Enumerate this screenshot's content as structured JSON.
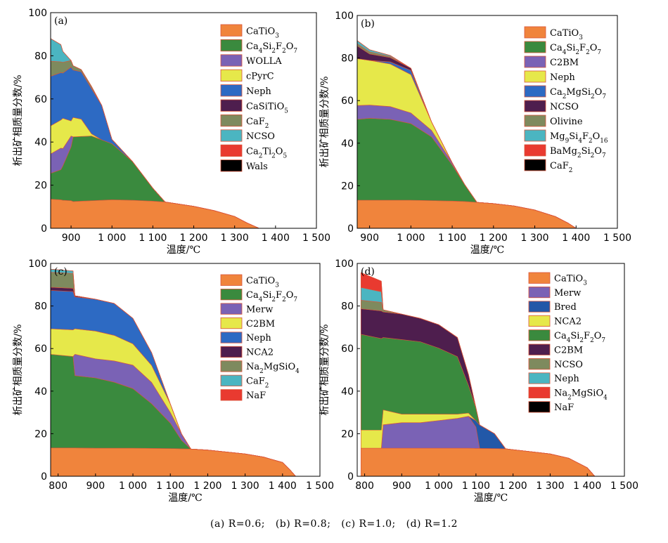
{
  "common": {
    "xlabel": "温度/℃",
    "ylabel": "析出矿相质量分数/%",
    "xtick_labels": {
      "800": "800",
      "900": "900",
      "1000": "1 000",
      "1100": "1 100",
      "1200": "1 200",
      "1300": "1 300",
      "1400": "1 400",
      "1500": "1 500"
    },
    "ytick_labels": [
      "0",
      "20",
      "40",
      "60",
      "80",
      "100"
    ]
  },
  "caption": {
    "a": "(a) R=0.6;",
    "b": "(b) R=0.8;",
    "c": "(c) R=1.0;",
    "d": "(d) R=1.2"
  },
  "chart_data": [
    {
      "type": "area",
      "panel": "(a)",
      "xlim": [
        850,
        1500
      ],
      "ylim": [
        0,
        100
      ],
      "x": [
        850,
        875,
        880,
        900,
        905,
        925,
        950,
        975,
        1000,
        1050,
        1100,
        1130,
        1200,
        1250,
        1300,
        1330,
        1360
      ],
      "series": [
        {
          "name": "CaTiO3",
          "label": [
            "CaTiO",
            "3"
          ],
          "color": "#F0843C",
          "values": [
            13.5,
            13.2,
            13,
            12.8,
            12.4,
            12.6,
            12.8,
            13,
            13.2,
            13,
            12.6,
            12.2,
            10.2,
            8.2,
            5.5,
            2.5,
            0
          ]
        },
        {
          "name": "Ca4Si2F2O7",
          "label": [
            "Ca",
            "4",
            "Si",
            "2",
            "F",
            "2",
            "O",
            "7"
          ],
          "color": "#3A8A3E",
          "values": [
            12,
            14,
            16,
            25,
            30,
            30,
            30,
            28,
            26,
            18,
            6,
            0,
            0,
            0,
            0,
            0,
            0
          ]
        },
        {
          "name": "WOLLA",
          "label": [
            "WOLLA"
          ],
          "color": "#7A62B5",
          "values": [
            9,
            10,
            8,
            5,
            0,
            0,
            0,
            0,
            0,
            0,
            0,
            0,
            0,
            0,
            0,
            0,
            0
          ]
        },
        {
          "name": "cPyrC",
          "label": [
            "cPyrC"
          ],
          "color": "#E6E84A",
          "values": [
            13,
            13,
            14,
            7,
            9,
            8,
            1,
            0,
            0,
            0,
            0,
            0,
            0,
            0,
            0,
            0,
            0
          ]
        },
        {
          "name": "Neph",
          "label": [
            "Neph"
          ],
          "color": "#2D6AC3",
          "values": [
            23,
            22,
            21,
            25,
            22,
            22,
            21,
            16,
            2,
            0,
            0,
            0,
            0,
            0,
            0,
            0,
            0
          ]
        },
        {
          "name": "CaSiTiO5",
          "label": [
            "CaSiTiO",
            "5"
          ],
          "color": "#4E1E4E",
          "values": [
            0,
            0,
            0,
            0,
            0,
            0,
            0,
            0,
            0,
            0,
            0,
            0,
            0,
            0,
            0,
            0,
            0
          ]
        },
        {
          "name": "CaF2",
          "label": [
            "CaF",
            "2"
          ],
          "color": "#7E8A5E",
          "values": [
            7,
            5,
            5,
            3,
            2,
            1,
            1,
            0,
            0,
            0,
            0,
            0,
            0,
            0,
            0,
            0,
            0
          ]
        },
        {
          "name": "NCSO",
          "label": [
            "NCSO"
          ],
          "color": "#4BB5C1",
          "values": [
            10.5,
            8,
            5,
            0,
            0,
            0,
            0,
            0,
            0,
            0,
            0,
            0,
            0,
            0,
            0,
            0,
            0
          ]
        },
        {
          "name": "Ca2Ti2O5",
          "label": [
            "Ca",
            "2",
            "Ti",
            "2",
            "O",
            "5"
          ],
          "color": "#E93A30",
          "values": [
            0,
            0,
            0,
            0,
            0,
            0,
            0,
            0,
            0,
            0,
            0,
            0,
            0,
            0,
            0,
            0,
            0
          ]
        },
        {
          "name": "Wals",
          "label": [
            "Wals"
          ],
          "color": "#000000",
          "values": [
            0,
            0,
            0,
            0,
            0,
            0,
            0,
            0,
            0,
            0,
            0,
            0,
            0,
            0,
            0,
            0,
            0
          ]
        }
      ]
    },
    {
      "type": "area",
      "panel": "(b)",
      "xlim": [
        870,
        1500
      ],
      "ylim": [
        0,
        100
      ],
      "x": [
        870,
        900,
        950,
        1000,
        1050,
        1100,
        1130,
        1160,
        1200,
        1250,
        1300,
        1350,
        1380,
        1400
      ],
      "series": [
        {
          "name": "CaTiO3",
          "label": [
            "CaTiO",
            "3"
          ],
          "color": "#F0843C",
          "values": [
            13.2,
            13.2,
            13.2,
            13.2,
            13,
            12.8,
            12.6,
            12.2,
            11.6,
            10.5,
            8.6,
            5.5,
            2.5,
            0
          ]
        },
        {
          "name": "Ca4Si2F2O7",
          "label": [
            "Ca",
            "4",
            "Si",
            "2",
            "F",
            "2",
            "O",
            "7"
          ],
          "color": "#3A8A3E",
          "values": [
            38,
            38.5,
            38,
            36,
            30,
            17,
            8,
            0,
            0,
            0,
            0,
            0,
            0,
            0
          ]
        },
        {
          "name": "C2BM",
          "label": [
            "C2BM"
          ],
          "color": "#7A62B5",
          "values": [
            6.5,
            6.2,
            6,
            5,
            3,
            1,
            0,
            0,
            0,
            0,
            0,
            0,
            0,
            0
          ]
        },
        {
          "name": "Neph",
          "label": [
            "Neph"
          ],
          "color": "#E6E84A",
          "values": [
            22,
            21,
            20,
            18,
            4,
            0,
            0,
            0,
            0,
            0,
            0,
            0,
            0,
            0
          ]
        },
        {
          "name": "Ca2MgSi2O7",
          "label": [
            "Ca",
            "2",
            "MgSi",
            "2",
            "O",
            "7"
          ],
          "color": "#2D6AC3",
          "values": [
            0,
            0,
            1,
            2,
            0,
            0,
            0,
            0,
            0,
            0,
            0,
            0,
            0,
            0
          ]
        },
        {
          "name": "NCSO",
          "label": [
            "NCSO"
          ],
          "color": "#4E1E4E",
          "values": [
            6,
            3,
            2,
            1,
            0,
            0,
            0,
            0,
            0,
            0,
            0,
            0,
            0,
            0
          ]
        },
        {
          "name": "Olivine",
          "label": [
            "Olivine"
          ],
          "color": "#7E8A5E",
          "values": [
            1,
            1,
            0.5,
            0,
            0,
            0,
            0,
            0,
            0,
            0,
            0,
            0,
            0,
            0
          ]
        },
        {
          "name": "Mg9Si4F2O16",
          "label": [
            "Mg",
            "9",
            "Si",
            "4",
            "F",
            "2",
            "O",
            "16"
          ],
          "color": "#4BB5C1",
          "values": [
            1.5,
            1,
            0.5,
            0,
            0,
            0,
            0,
            0,
            0,
            0,
            0,
            0,
            0,
            0
          ]
        },
        {
          "name": "BaMg2Si2O7",
          "label": [
            "BaMg",
            "2",
            "Si",
            "2",
            "O",
            "7"
          ],
          "color": "#E93A30",
          "values": [
            0,
            0,
            0,
            0,
            0,
            0,
            0,
            0,
            0,
            0,
            0,
            0,
            0,
            0
          ]
        },
        {
          "name": "CaF2",
          "label": [
            "CaF",
            "2"
          ],
          "color": "#000000",
          "values": [
            0,
            0,
            0,
            0,
            0,
            0,
            0,
            0,
            0,
            0,
            0,
            0,
            0,
            0
          ]
        }
      ]
    },
    {
      "type": "area",
      "panel": "(c)",
      "xlim": [
        780,
        1500
      ],
      "ylim": [
        0,
        100
      ],
      "x": [
        780,
        840,
        845,
        900,
        950,
        1000,
        1050,
        1100,
        1130,
        1155,
        1200,
        1300,
        1350,
        1400,
        1420,
        1435
      ],
      "series": [
        {
          "name": "CaTiO3",
          "label": [
            "CaTiO",
            "3"
          ],
          "color": "#F0843C",
          "values": [
            13.3,
            13.3,
            13.3,
            13.2,
            13.2,
            13.2,
            13.1,
            13,
            12.9,
            12.8,
            12.3,
            10.5,
            9,
            6.5,
            3,
            0
          ]
        },
        {
          "name": "Ca4Si2F2O7",
          "label": [
            "Ca",
            "4",
            "Si",
            "2",
            "F",
            "2",
            "O",
            "7"
          ],
          "color": "#3A8A3E",
          "values": [
            44,
            43,
            34,
            33,
            31,
            28,
            21,
            12,
            4,
            0,
            0,
            0,
            0,
            0,
            0,
            0
          ]
        },
        {
          "name": "Merw",
          "label": [
            "Merw"
          ],
          "color": "#7A62B5",
          "values": [
            0,
            0,
            10,
            9,
            10,
            11,
            10,
            5,
            3,
            0,
            0,
            0,
            0,
            0,
            0,
            0
          ]
        },
        {
          "name": "C2BM",
          "label": [
            "C2BM"
          ],
          "color": "#E6E84A",
          "values": [
            12,
            12.5,
            12,
            13,
            12,
            10,
            8,
            4,
            0,
            0,
            0,
            0,
            0,
            0,
            0,
            0
          ]
        },
        {
          "name": "Neph",
          "label": [
            "Neph"
          ],
          "color": "#2D6AC3",
          "values": [
            18,
            18,
            15,
            15,
            15,
            12,
            6,
            0,
            0,
            0,
            0,
            0,
            0,
            0,
            0,
            0
          ]
        },
        {
          "name": "NCA2",
          "label": [
            "NCA2"
          ],
          "color": "#4E1E4E",
          "values": [
            1.5,
            1.5,
            0.5,
            0,
            0,
            0,
            0,
            0,
            0,
            0,
            0,
            0,
            0,
            0,
            0,
            0
          ]
        },
        {
          "name": "Na2MgSiO4",
          "label": [
            "Na",
            "2",
            "MgSiO",
            "4"
          ],
          "color": "#7E8A5E",
          "values": [
            7,
            7,
            0,
            0,
            0,
            0,
            0,
            0,
            0,
            0,
            0,
            0,
            0,
            0,
            0,
            0
          ]
        },
        {
          "name": "CaF2",
          "label": [
            "CaF",
            "2"
          ],
          "color": "#4BB5C1",
          "values": [
            1.5,
            1.2,
            0,
            0,
            0,
            0,
            0,
            0,
            0,
            0,
            0,
            0,
            0,
            0,
            0,
            0
          ]
        },
        {
          "name": "NaF",
          "label": [
            "NaF"
          ],
          "color": "#E93A30",
          "values": [
            0,
            0,
            0,
            0,
            0,
            0,
            0,
            0,
            0,
            0,
            0,
            0,
            0,
            0,
            0,
            0
          ]
        }
      ]
    },
    {
      "type": "area",
      "panel": "(d)",
      "xlim": [
        780,
        1500
      ],
      "ylim": [
        0,
        100
      ],
      "x": [
        790,
        845,
        850,
        900,
        950,
        1000,
        1050,
        1080,
        1100,
        1110,
        1150,
        1180,
        1200,
        1300,
        1350,
        1400,
        1420
      ],
      "series": [
        {
          "name": "CaTiO3",
          "label": [
            "CaTiO",
            "3"
          ],
          "color": "#F0843C",
          "values": [
            13.2,
            13.2,
            13.2,
            13.2,
            13.2,
            13.2,
            13.2,
            13.2,
            13.1,
            13.1,
            13,
            12.9,
            12.5,
            10.5,
            8.5,
            4,
            0
          ]
        },
        {
          "name": "Merw",
          "label": [
            "Merw"
          ],
          "color": "#7A62B5",
          "values": [
            0,
            0,
            11,
            12,
            12,
            13,
            14,
            15,
            10,
            0,
            0,
            0,
            0,
            0,
            0,
            0,
            0
          ]
        },
        {
          "name": "Bred",
          "label": [
            "Bred"
          ],
          "color": "#2258A8",
          "values": [
            0,
            0,
            0,
            0,
            0,
            0,
            0,
            0,
            3,
            11,
            7,
            0,
            0,
            0,
            0,
            0,
            0
          ]
        },
        {
          "name": "NCA2",
          "label": [
            "NCA2"
          ],
          "color": "#E6E84A",
          "values": [
            8.5,
            8.5,
            7,
            4,
            4,
            3,
            2,
            1.5,
            0,
            0,
            0,
            0,
            0,
            0,
            0,
            0,
            0
          ]
        },
        {
          "name": "Ca4Si2F2O7",
          "label": [
            "Ca",
            "4",
            "Si",
            "2",
            "F",
            "2",
            "O",
            "7"
          ],
          "color": "#3A8A3E",
          "values": [
            45,
            43,
            34,
            35,
            34,
            31,
            27,
            13,
            6,
            0,
            0,
            0,
            0,
            0,
            0,
            0,
            0
          ]
        },
        {
          "name": "C2BM",
          "label": [
            "C2BM"
          ],
          "color": "#4E1E4E",
          "values": [
            12,
            13,
            12,
            12,
            11,
            11,
            9,
            5,
            0,
            0,
            0,
            0,
            0,
            0,
            0,
            0,
            0
          ]
        },
        {
          "name": "NCSO",
          "label": [
            "NCSO"
          ],
          "color": "#7E8A5E",
          "values": [
            4,
            4,
            1,
            0,
            0,
            0,
            0,
            0,
            0,
            0,
            0,
            0,
            0,
            0,
            0,
            0,
            0
          ]
        },
        {
          "name": "Neph",
          "label": [
            "Neph"
          ],
          "color": "#4BB5C1",
          "values": [
            6,
            5,
            0,
            0,
            0,
            0,
            0,
            0,
            0,
            0,
            0,
            0,
            0,
            0,
            0,
            0,
            0
          ]
        },
        {
          "name": "Na2MgSiO4",
          "label": [
            "Na",
            "2",
            "MgSiO",
            "4"
          ],
          "color": "#E93A30",
          "values": [
            7,
            5,
            0,
            0,
            0,
            0,
            0,
            0,
            0,
            0,
            0,
            0,
            0,
            0,
            0,
            0,
            0
          ]
        },
        {
          "name": "NaF",
          "label": [
            "NaF"
          ],
          "color": "#000000",
          "values": [
            0,
            0,
            0,
            0,
            0,
            0,
            0,
            0,
            0,
            0,
            0,
            0,
            0,
            0,
            0,
            0,
            0
          ]
        }
      ]
    }
  ]
}
